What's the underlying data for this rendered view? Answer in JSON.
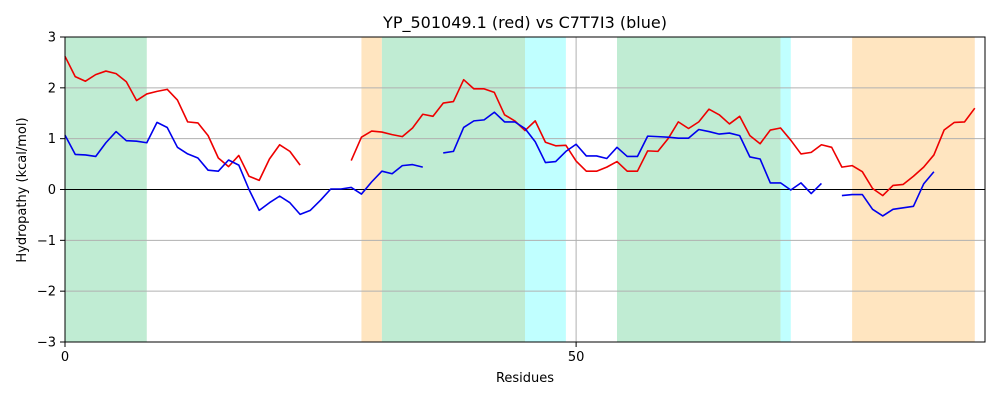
{
  "chart_data": {
    "type": "line",
    "title": "YP_501049.1 (red) vs C7T7I3 (blue)",
    "xlabel": "Residues",
    "ylabel": "Hydropathy (kcal/mol)",
    "xlim": [
      0,
      90
    ],
    "ylim": [
      -3,
      3
    ],
    "xticks": [
      0,
      50
    ],
    "yticks": [
      -3,
      -2,
      -1,
      0,
      1,
      2,
      3
    ],
    "grid": true,
    "regions": [
      {
        "x0": 0,
        "x1": 8,
        "color": "#c0ecd3"
      },
      {
        "x0": 29,
        "x1": 31,
        "color": "#ffe5c0"
      },
      {
        "x0": 31,
        "x1": 45,
        "color": "#c0ecd3"
      },
      {
        "x0": 45,
        "x1": 49,
        "color": "#c0ffff"
      },
      {
        "x0": 54,
        "x1": 70,
        "color": "#c0ecd3"
      },
      {
        "x0": 70,
        "x1": 71,
        "color": "#c0ffff"
      },
      {
        "x0": 77,
        "x1": 89,
        "color": "#ffe5c0"
      }
    ],
    "series": [
      {
        "color": "#ee0000",
        "x": [
          0,
          1,
          2,
          3,
          4,
          5,
          6,
          7,
          8,
          9,
          10,
          11,
          12,
          13,
          14,
          15,
          16,
          17,
          18,
          19,
          20,
          21,
          22,
          23,
          28,
          29,
          30,
          31,
          32,
          33,
          34,
          35,
          36,
          37,
          38,
          39,
          40,
          41,
          42,
          43,
          44,
          45,
          46,
          47,
          48,
          49,
          50,
          51,
          52,
          53,
          54,
          55,
          56,
          57,
          58,
          59,
          60,
          61,
          62,
          63,
          64,
          65,
          66,
          67,
          68,
          69,
          70,
          71,
          72,
          73,
          74,
          75,
          76,
          77,
          78,
          79,
          80,
          81,
          82,
          83,
          84,
          85,
          86,
          87,
          88,
          89
        ],
        "y": [
          2.62,
          2.22,
          2.13,
          2.26,
          2.33,
          2.28,
          2.12,
          1.75,
          1.88,
          1.93,
          1.97,
          1.76,
          1.33,
          1.31,
          1.06,
          0.62,
          0.45,
          0.67,
          0.26,
          0.18,
          0.6,
          0.88,
          0.75,
          0.48,
          0.57,
          1.03,
          1.15,
          1.13,
          1.08,
          1.04,
          1.21,
          1.48,
          1.44,
          1.7,
          1.73,
          2.16,
          1.98,
          1.98,
          1.91,
          1.47,
          1.35,
          1.16,
          1.35,
          0.93,
          0.86,
          0.87,
          0.56,
          0.36,
          0.36,
          0.44,
          0.55,
          0.36,
          0.36,
          0.76,
          0.75,
          1.0,
          1.33,
          1.2,
          1.33,
          1.58,
          1.47,
          1.29,
          1.44,
          1.06,
          0.9,
          1.17,
          1.21,
          0.97,
          0.7,
          0.73,
          0.88,
          0.83,
          0.44,
          0.47,
          0.35,
          0.02,
          -0.12,
          0.08,
          0.1,
          0.26,
          0.44,
          0.68,
          1.17,
          1.32,
          1.33,
          1.6
        ]
      },
      {
        "color": "#0000ee",
        "x": [
          0,
          1,
          2,
          3,
          4,
          5,
          6,
          7,
          8,
          9,
          10,
          11,
          12,
          13,
          14,
          15,
          16,
          17,
          18,
          19,
          20,
          21,
          22,
          23,
          24,
          25,
          26,
          27,
          28,
          29,
          30,
          31,
          32,
          33,
          34,
          35,
          37,
          38,
          39,
          40,
          41,
          42,
          43,
          44,
          45,
          46,
          47,
          48,
          49,
          50,
          51,
          52,
          53,
          54,
          55,
          56,
          57,
          58,
          59,
          60,
          61,
          62,
          63,
          64,
          65,
          66,
          67,
          68,
          69,
          70,
          71,
          72,
          73,
          74,
          76,
          77,
          78,
          79,
          80,
          81,
          82,
          83,
          84,
          85
        ],
        "y": [
          1.07,
          0.69,
          0.68,
          0.65,
          0.92,
          1.14,
          0.96,
          0.95,
          0.92,
          1.32,
          1.22,
          0.83,
          0.7,
          0.62,
          0.38,
          0.36,
          0.58,
          0.48,
          0.0,
          -0.41,
          -0.26,
          -0.13,
          -0.26,
          -0.49,
          -0.41,
          -0.21,
          0.01,
          0.01,
          0.04,
          -0.09,
          0.15,
          0.36,
          0.31,
          0.47,
          0.49,
          0.44,
          0.72,
          0.75,
          1.22,
          1.35,
          1.37,
          1.52,
          1.33,
          1.33,
          1.2,
          0.94,
          0.53,
          0.55,
          0.75,
          0.89,
          0.66,
          0.66,
          0.61,
          0.83,
          0.65,
          0.65,
          1.05,
          1.04,
          1.03,
          1.01,
          1.01,
          1.18,
          1.14,
          1.09,
          1.11,
          1.06,
          0.64,
          0.6,
          0.13,
          0.13,
          -0.01,
          0.13,
          -0.08,
          0.12,
          -0.12,
          -0.1,
          -0.1,
          -0.39,
          -0.52,
          -0.39,
          -0.36,
          -0.33,
          0.11,
          0.35
        ]
      }
    ]
  }
}
